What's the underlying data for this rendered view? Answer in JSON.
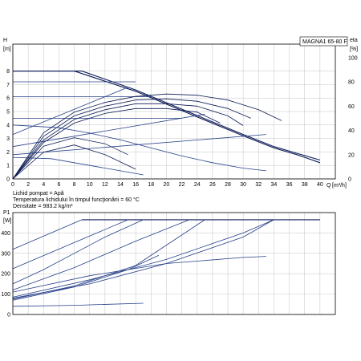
{
  "chart_data": [
    {
      "type": "line",
      "model_label": "MAGNA1 65-80 F",
      "ylabel": "H",
      "yunit": "[m]",
      "y2label": "eta",
      "y2unit": "[%]",
      "xlabel": "Q",
      "xunit": "[m³/h]",
      "xlim": [
        0,
        42
      ],
      "ylim": [
        0,
        10
      ],
      "y2lim": [
        0,
        100
      ],
      "grid": true,
      "x_ticks": [
        "0",
        "2",
        "4",
        "6",
        "8",
        "10",
        "12",
        "14",
        "16",
        "18",
        "20",
        "22",
        "24",
        "26",
        "28",
        "30",
        "32",
        "34",
        "36",
        "38",
        "40"
      ],
      "y_ticks": [
        "0",
        "1",
        "2",
        "3",
        "4",
        "5",
        "6",
        "7",
        "8"
      ],
      "y2_ticks": [
        "0",
        "20",
        "40",
        "60",
        "80",
        "100"
      ],
      "series": [
        {
          "role": "max-curve",
          "x": [
            0,
            9,
            16,
            24,
            30,
            34,
            37,
            40
          ],
          "y": [
            8.0,
            8.0,
            6.6,
            4.7,
            3.3,
            2.4,
            1.9,
            1.4
          ]
        },
        {
          "role": "max-curve-lower",
          "x": [
            0,
            8,
            16,
            24,
            30,
            34,
            37,
            40
          ],
          "y": [
            8.0,
            8.0,
            6.5,
            4.6,
            3.2,
            2.3,
            1.8,
            1.2
          ]
        },
        {
          "role": "const-pressure",
          "x": [
            0,
            16
          ],
          "y": [
            7.2,
            7.2
          ]
        },
        {
          "role": "const-pressure",
          "x": [
            0,
            18
          ],
          "y": [
            6.1,
            6.1
          ]
        },
        {
          "role": "const-pressure",
          "x": [
            0,
            22
          ],
          "y": [
            4.5,
            4.5
          ]
        },
        {
          "role": "prop-pressure",
          "x": [
            0,
            15
          ],
          "y": [
            3.3,
            6.8
          ]
        },
        {
          "role": "prop-pressure",
          "x": [
            0,
            25
          ],
          "y": [
            2.4,
            4.8
          ]
        },
        {
          "role": "prop-pressure",
          "x": [
            0,
            33
          ],
          "y": [
            1.8,
            3.3
          ]
        },
        {
          "role": "speed-curve",
          "x": [
            0,
            6,
            10,
            14,
            18,
            22,
            26,
            30,
            33
          ],
          "y": [
            4.0,
            3.8,
            3.4,
            2.9,
            2.3,
            1.7,
            1.2,
            0.8,
            0.6
          ]
        },
        {
          "role": "speed-curve",
          "x": [
            0,
            5,
            10,
            14,
            17
          ],
          "y": [
            1.6,
            1.5,
            1.0,
            0.6,
            0.3
          ]
        },
        {
          "role": "efficiency",
          "x": [
            0,
            4,
            8,
            12,
            16,
            20,
            24,
            28,
            32,
            35
          ],
          "y2": [
            0,
            38,
            55,
            63,
            68,
            70,
            69,
            65,
            57,
            48
          ]
        },
        {
          "role": "efficiency",
          "x": [
            0,
            4,
            8,
            12,
            16,
            20,
            24,
            28,
            31
          ],
          "y2": [
            0,
            35,
            52,
            60,
            65,
            66,
            64,
            58,
            50
          ]
        },
        {
          "role": "efficiency",
          "x": [
            0,
            4,
            8,
            12,
            16,
            20,
            24,
            28,
            30
          ],
          "y2": [
            0,
            32,
            49,
            57,
            62,
            62,
            60,
            52,
            44
          ]
        },
        {
          "role": "efficiency",
          "x": [
            0,
            4,
            8,
            12,
            16,
            20,
            24,
            27
          ],
          "y2": [
            0,
            30,
            46,
            54,
            58,
            58,
            55,
            46
          ]
        },
        {
          "role": "efficiency",
          "x": [
            0,
            4,
            8,
            12,
            15
          ],
          "y2": [
            0,
            27,
            34,
            29,
            20
          ]
        },
        {
          "role": "efficiency",
          "x": [
            0,
            4,
            8,
            12,
            16
          ],
          "y2": [
            0,
            22,
            28,
            20,
            8
          ]
        }
      ]
    },
    {
      "type": "line",
      "ylabel": "P1",
      "yunit": "[W]",
      "xlim": [
        0,
        42
      ],
      "ylim": [
        0,
        500
      ],
      "grid": true,
      "y_ticks": [
        "0",
        "100",
        "200",
        "300",
        "400"
      ],
      "series": [
        {
          "role": "max-power",
          "x": [
            9,
            40
          ],
          "y": [
            465,
            465
          ]
        },
        {
          "role": "power",
          "x": [
            0,
            9
          ],
          "y": [
            320,
            465
          ]
        },
        {
          "role": "power",
          "x": [
            0,
            15
          ],
          "y": [
            225,
            465
          ]
        },
        {
          "role": "power",
          "x": [
            0,
            4,
            8,
            12,
            17
          ],
          "y": [
            150,
            220,
            300,
            380,
            465
          ]
        },
        {
          "role": "power",
          "x": [
            0,
            8,
            16,
            23
          ],
          "y": [
            120,
            230,
            360,
            465
          ]
        },
        {
          "role": "power",
          "x": [
            0,
            10,
            20,
            30,
            34
          ],
          "y": [
            85,
            170,
            270,
            400,
            465
          ]
        },
        {
          "role": "power",
          "x": [
            0,
            10,
            20,
            30,
            34
          ],
          "y": [
            80,
            150,
            250,
            380,
            465
          ]
        },
        {
          "role": "power",
          "x": [
            0,
            8,
            16,
            25
          ],
          "y": [
            75,
            140,
            240,
            465
          ]
        },
        {
          "role": "power",
          "x": [
            0,
            10,
            20,
            30,
            33
          ],
          "y": [
            110,
            190,
            250,
            280,
            285
          ]
        },
        {
          "role": "power",
          "x": [
            0,
            8,
            15,
            19
          ],
          "y": [
            70,
            135,
            220,
            290
          ]
        },
        {
          "role": "power",
          "x": [
            0,
            8,
            17
          ],
          "y": [
            40,
            45,
            55
          ]
        }
      ]
    }
  ],
  "notes": {
    "line1": "Lichid pompat = Apă",
    "line2": "Temperatura lichidului în timpul funcţionării = 60 °C",
    "line3": "Densitate = 983.2 kg/m³"
  },
  "colors": {
    "curve_dark": "#0b1a55",
    "curve_blue": "#26408a",
    "axis": "#000000",
    "grid": "#b5b5b5"
  }
}
